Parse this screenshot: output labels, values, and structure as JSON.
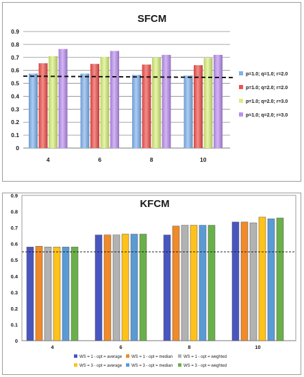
{
  "chart_data": [
    {
      "type": "bar",
      "title": "SFCM",
      "categories": [
        "4",
        "6",
        "8",
        "10"
      ],
      "ylim": [
        0,
        0.9
      ],
      "yticks": [
        "0",
        "0.1",
        "0.2",
        "0.3",
        "0.4",
        "0.5",
        "0.6",
        "0.7",
        "0.8",
        "0.9"
      ],
      "grid": true,
      "legend_position": "right",
      "reference_line": 0.55,
      "series": [
        {
          "name": "p=1.0; q=1.0; r=2.0",
          "color": "#7fb2ee",
          "values": [
            0.575,
            0.575,
            0.565,
            0.56
          ]
        },
        {
          "name": "p=1.0; q=2.0; r=2.0",
          "color": "#f0504a",
          "values": [
            0.655,
            0.65,
            0.645,
            0.64
          ]
        },
        {
          "name": "p=1.0; q=2.0; r=3.0",
          "color": "#d8f07a",
          "values": [
            0.71,
            0.705,
            0.7,
            0.695
          ]
        },
        {
          "name": "p=1.0; q=2.0; r=3.0",
          "color": "#bb8ff0",
          "values": [
            0.765,
            0.75,
            0.72,
            0.72
          ]
        }
      ]
    },
    {
      "type": "bar",
      "title": "KFCM",
      "categories": [
        "4",
        "6",
        "8",
        "10"
      ],
      "ylim": [
        0,
        0.9
      ],
      "yticks": [
        "0",
        "0.1",
        "0.2",
        "0.3",
        "0.4",
        "0.5",
        "0.6",
        "0.7",
        "0.8",
        "0.9"
      ],
      "grid": false,
      "legend_position": "bottom",
      "reference_line": 0.55,
      "series": [
        {
          "name": "WS = 1 - opt = average",
          "color": "#4a56bf",
          "values": [
            0.58,
            0.655,
            0.655,
            0.735
          ]
        },
        {
          "name": "WS = 1 - opt = median",
          "color": "#f08a2a",
          "values": [
            0.585,
            0.655,
            0.71,
            0.735
          ]
        },
        {
          "name": "WS = 1 - opt = weghted",
          "color": "#b2b2b2",
          "values": [
            0.58,
            0.655,
            0.715,
            0.73
          ]
        },
        {
          "name": "WS = 3 - opt = average",
          "color": "#ffc21a",
          "values": [
            0.58,
            0.66,
            0.715,
            0.765
          ]
        },
        {
          "name": "WS = 3 - opt = median",
          "color": "#5b9bd5",
          "values": [
            0.58,
            0.66,
            0.715,
            0.755
          ]
        },
        {
          "name": "WS = 3 - opt = weghted",
          "color": "#6ab04a",
          "values": [
            0.58,
            0.66,
            0.715,
            0.76
          ]
        }
      ]
    }
  ]
}
